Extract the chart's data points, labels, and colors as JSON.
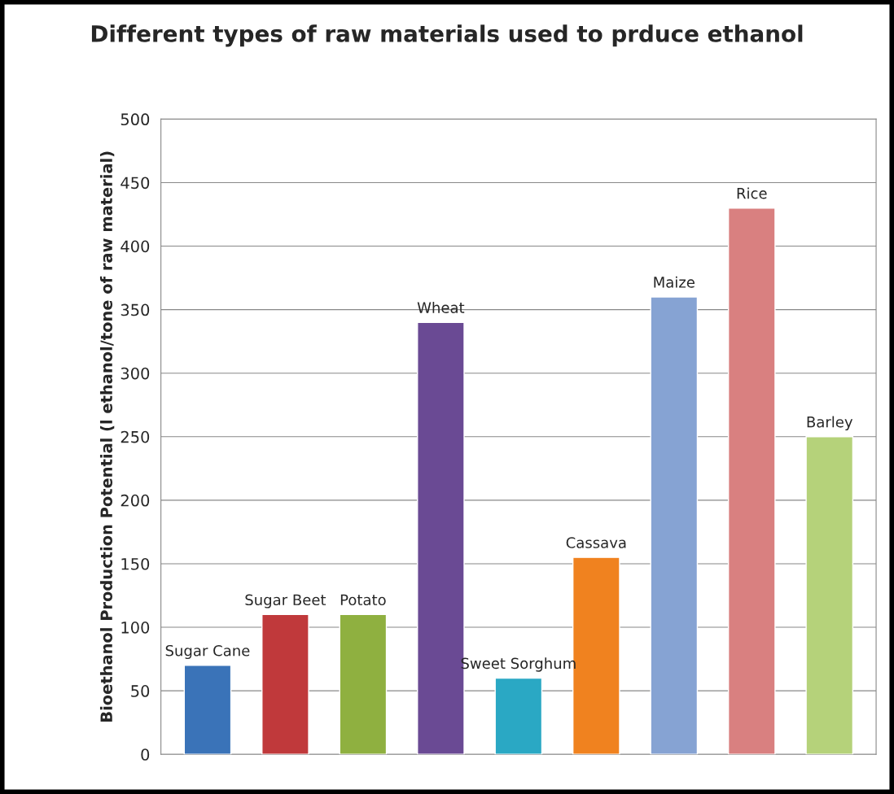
{
  "chart_data": {
    "type": "bar",
    "title": "Different types of raw materials used to prduce ethanol",
    "ylabel": "Bioethanol Production Potential (l ethanol/tone of raw material)",
    "categories": [
      "Sugar Cane",
      "Sugar Beet",
      "Potato",
      "Wheat",
      "Sweet Sorghum",
      "Cassava",
      "Maize",
      "Rice",
      "Barley"
    ],
    "values": [
      70,
      110,
      110,
      340,
      60,
      155,
      360,
      430,
      250
    ],
    "colors": [
      "#3a73b8",
      "#c0393b",
      "#8fb040",
      "#6a4a94",
      "#2aa8c4",
      "#f0821f",
      "#86a3d3",
      "#d98080",
      "#b5d27a"
    ],
    "ylim": [
      0,
      500
    ],
    "yticks": [
      0,
      50,
      100,
      150,
      200,
      250,
      300,
      350,
      400,
      450,
      500
    ],
    "grid": "y",
    "tick_labels": "y"
  }
}
